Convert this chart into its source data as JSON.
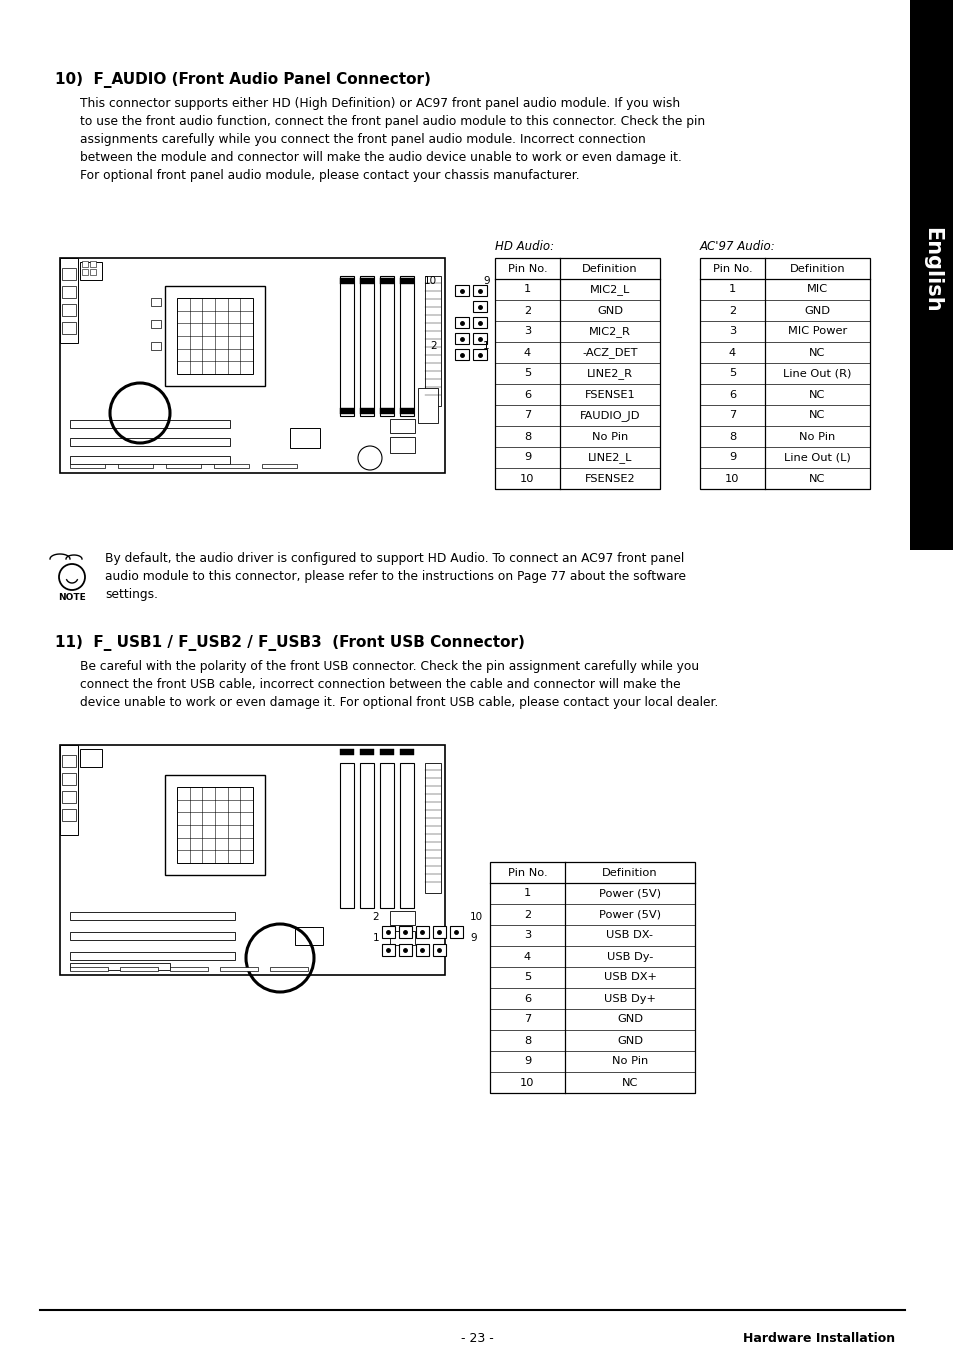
{
  "title_section10": "10)  F_AUDIO (Front Audio Panel Connector)",
  "body_text10": "This connector supports either HD (High Definition) or AC97 front panel audio module. If you wish\nto use the front audio function, connect the front panel audio module to this connector. Check the pin\nassignments carefully while you connect the front panel audio module. Incorrect connection\nbetween the module and connector will make the audio device unable to work or even damage it.\nFor optional front panel audio module, please contact your chassis manufacturer.",
  "hd_audio_label": "HD Audio:",
  "ac97_audio_label": "AC'97 Audio:",
  "hd_audio_headers": [
    "Pin No.",
    "Definition"
  ],
  "hd_audio_rows": [
    [
      "1",
      "MIC2_L"
    ],
    [
      "2",
      "GND"
    ],
    [
      "3",
      "MIC2_R"
    ],
    [
      "4",
      "-ACZ_DET"
    ],
    [
      "5",
      "LINE2_R"
    ],
    [
      "6",
      "FSENSE1"
    ],
    [
      "7",
      "FAUDIO_JD"
    ],
    [
      "8",
      "No Pin"
    ],
    [
      "9",
      "LINE2_L"
    ],
    [
      "10",
      "FSENSE2"
    ]
  ],
  "ac97_audio_headers": [
    "Pin No.",
    "Definition"
  ],
  "ac97_audio_rows": [
    [
      "1",
      "MIC"
    ],
    [
      "2",
      "GND"
    ],
    [
      "3",
      "MIC Power"
    ],
    [
      "4",
      "NC"
    ],
    [
      "5",
      "Line Out (R)"
    ],
    [
      "6",
      "NC"
    ],
    [
      "7",
      "NC"
    ],
    [
      "8",
      "No Pin"
    ],
    [
      "9",
      "Line Out (L)"
    ],
    [
      "10",
      "NC"
    ]
  ],
  "note_text": "By default, the audio driver is configured to support HD Audio. To connect an AC97 front panel\naudio module to this connector, please refer to the instructions on Page 77 about the software\nsettings.",
  "title_section11": "11)  F_ USB1 / F_USB2 / F_USB3  (Front USB Connector)",
  "body_text11": "Be careful with the polarity of the front USB connector. Check the pin assignment carefully while you\nconnect the front USB cable, incorrect connection between the cable and connector will make the\ndevice unable to work or even damage it. For optional front USB cable, please contact your local dealer.",
  "usb_headers": [
    "Pin No.",
    "Definition"
  ],
  "usb_rows": [
    [
      "1",
      "Power (5V)"
    ],
    [
      "2",
      "Power (5V)"
    ],
    [
      "3",
      "USB DX-"
    ],
    [
      "4",
      "USB Dy-"
    ],
    [
      "5",
      "USB DX+"
    ],
    [
      "6",
      "USB Dy+"
    ],
    [
      "7",
      "GND"
    ],
    [
      "8",
      "GND"
    ],
    [
      "9",
      "No Pin"
    ],
    [
      "10",
      "NC"
    ]
  ],
  "footer_page": "- 23 -",
  "footer_right": "Hardware Installation",
  "sidebar_text": "English",
  "bg_color": "#ffffff",
  "sidebar_bg": "#000000",
  "sidebar_text_color": "#ffffff"
}
